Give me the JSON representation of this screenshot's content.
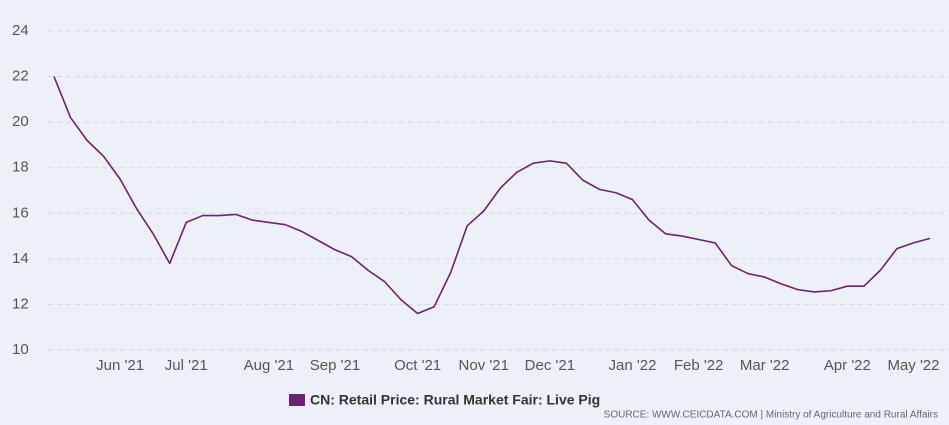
{
  "chart_data": {
    "type": "line",
    "categories": [
      null,
      null,
      null,
      null,
      "Jun '21",
      null,
      null,
      null,
      "Jul '21",
      null,
      null,
      null,
      null,
      "Aug '21",
      null,
      null,
      null,
      "Sep '21",
      null,
      null,
      null,
      null,
      "Oct '21",
      null,
      null,
      null,
      "Nov '21",
      null,
      null,
      null,
      "Dec '21",
      null,
      null,
      null,
      null,
      "Jan '22",
      null,
      null,
      null,
      "Feb '22",
      null,
      null,
      null,
      "Mar '22",
      null,
      null,
      null,
      null,
      "Apr '22",
      null,
      null,
      null,
      "May '22",
      null
    ],
    "series": [
      {
        "name": "CN: Retail Price: Rural Market Fair: Live Pig",
        "color": "#6b2272",
        "values": [
          22.0,
          20.2,
          19.2,
          18.5,
          17.5,
          16.2,
          15.1,
          13.8,
          15.6,
          15.9,
          15.9,
          15.95,
          15.7,
          15.6,
          15.5,
          15.2,
          14.8,
          14.4,
          14.1,
          13.5,
          13.0,
          12.2,
          11.6,
          11.9,
          13.4,
          15.45,
          16.1,
          17.1,
          17.8,
          18.2,
          18.3,
          18.2,
          17.45,
          17.05,
          16.9,
          16.6,
          15.7,
          15.1,
          15.0,
          14.85,
          14.7,
          13.7,
          13.35,
          13.2,
          12.9,
          12.65,
          12.55,
          12.6,
          12.8,
          12.8,
          13.5,
          14.45,
          14.7,
          14.9
        ]
      }
    ],
    "ylim": [
      10,
      24
    ],
    "yticks": [
      10,
      12,
      14,
      16,
      18,
      20,
      22,
      24
    ],
    "grid": true,
    "source": "SOURCE: WWW.CEICDATA.COM | Ministry of Agriculture and Rural Affairs"
  }
}
